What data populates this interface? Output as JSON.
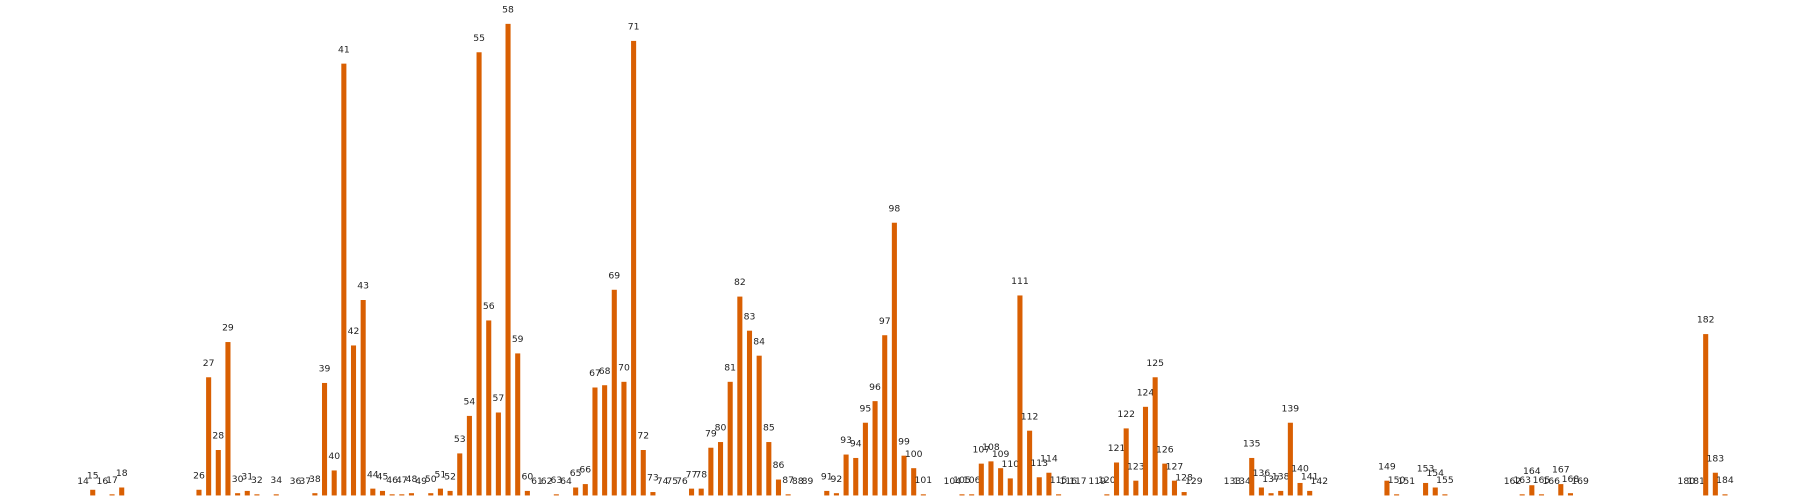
{
  "chart_data": {
    "type": "bar",
    "color": "#d95f02",
    "x": [
      14,
      15,
      16,
      17,
      18,
      26,
      27,
      28,
      29,
      30,
      31,
      32,
      34,
      36,
      37,
      38,
      39,
      40,
      41,
      42,
      43,
      44,
      45,
      46,
      47,
      48,
      49,
      50,
      51,
      52,
      53,
      54,
      55,
      56,
      57,
      58,
      59,
      60,
      61,
      62,
      63,
      64,
      65,
      66,
      67,
      68,
      69,
      70,
      71,
      72,
      73,
      74,
      75,
      76,
      77,
      78,
      79,
      80,
      81,
      82,
      83,
      84,
      85,
      86,
      87,
      88,
      89,
      91,
      92,
      93,
      94,
      95,
      96,
      97,
      98,
      99,
      100,
      101,
      104,
      105,
      106,
      107,
      108,
      109,
      110,
      111,
      112,
      113,
      114,
      115,
      116,
      117,
      119,
      120,
      121,
      122,
      123,
      124,
      125,
      126,
      127,
      128,
      129,
      133,
      134,
      135,
      136,
      137,
      138,
      139,
      140,
      141,
      142,
      149,
      150,
      151,
      153,
      154,
      155,
      162,
      163,
      164,
      165,
      166,
      167,
      168,
      169,
      180,
      181,
      182,
      183,
      184
    ],
    "values": [
      0,
      5,
      0,
      1,
      7,
      5,
      104,
      40,
      135,
      2,
      4,
      1,
      1,
      0,
      0,
      2,
      99,
      22,
      380,
      132,
      172,
      6,
      4,
      1,
      1,
      2,
      0,
      2,
      6,
      4,
      37,
      70,
      390,
      154,
      73,
      415,
      125,
      4,
      0,
      0,
      1,
      0,
      7,
      10,
      95,
      97,
      181,
      100,
      400,
      40,
      3,
      0,
      0,
      0,
      6,
      6,
      42,
      47,
      100,
      175,
      145,
      123,
      47,
      14,
      1,
      0,
      0,
      4,
      2,
      36,
      33,
      64,
      83,
      141,
      240,
      35,
      24,
      1,
      0,
      1,
      1,
      28,
      30,
      24,
      15,
      176,
      57,
      16,
      20,
      1,
      0,
      0,
      0,
      1,
      29,
      59,
      13,
      78,
      104,
      28,
      13,
      3,
      0,
      0,
      0,
      33,
      7,
      2,
      4,
      64,
      11,
      4,
      0,
      13,
      1,
      0,
      11,
      7,
      1,
      0,
      1,
      9,
      1,
      0,
      10,
      2,
      0,
      0,
      0,
      142,
      20,
      1
    ]
  }
}
